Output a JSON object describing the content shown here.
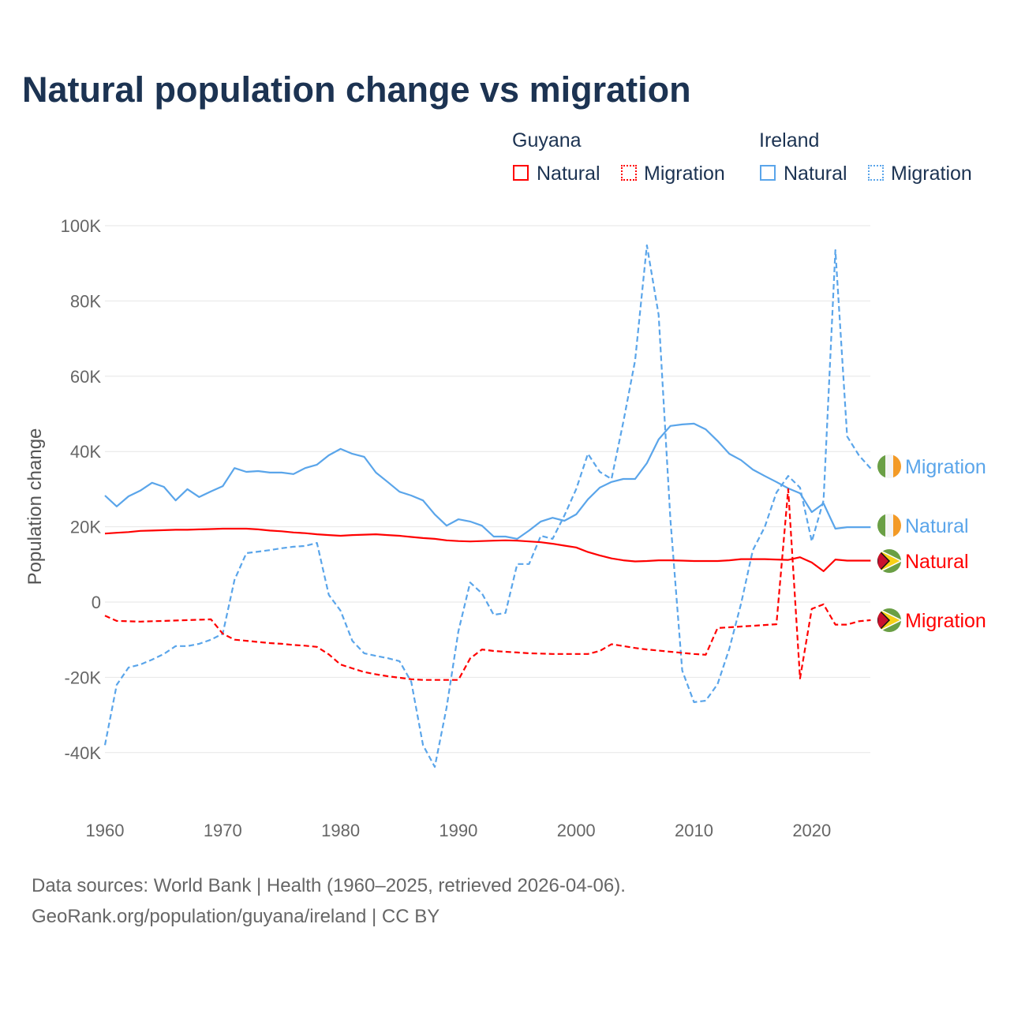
{
  "title": "Natural population change vs migration",
  "legend": {
    "groups": [
      {
        "name": "Guyana",
        "color": "#ff0000",
        "items": [
          "Natural",
          "Migration"
        ]
      },
      {
        "name": "Ireland",
        "color": "#5aa5ea",
        "items": [
          "Natural",
          "Migration"
        ]
      }
    ]
  },
  "footer": {
    "line1": "Data sources: World Bank | Health (1960–2025, retrieved 2026-04-06).",
    "line2": "GeoRank.org/population/guyana/ireland | CC BY"
  },
  "chart_data": {
    "type": "line",
    "title": "Natural population change vs migration",
    "xlabel": "",
    "ylabel": "Population change",
    "xlim": [
      1960,
      2025
    ],
    "ylim": [
      -50000,
      100000
    ],
    "x_ticks": [
      1960,
      1970,
      1980,
      1990,
      2000,
      2010,
      2020
    ],
    "y_ticks": [
      {
        "v": 100000,
        "label": "100K"
      },
      {
        "v": 80000,
        "label": "80K"
      },
      {
        "v": 60000,
        "label": "60K"
      },
      {
        "v": 40000,
        "label": "40K"
      },
      {
        "v": 20000,
        "label": "20K"
      },
      {
        "v": 0,
        "label": "0"
      },
      {
        "v": -20000,
        "label": "-20K"
      },
      {
        "v": -40000,
        "label": "-40K"
      }
    ],
    "grid": true,
    "legend_position": "top-right",
    "unit": "thousands",
    "series": [
      {
        "name": "Ireland Migration",
        "label": "Migration",
        "country": "Ireland",
        "color": "#5aa5ea",
        "dash": true,
        "values": [
          -38,
          -22,
          -17.4,
          -16.6,
          -15.3,
          -13.8,
          -11.7,
          -11.7,
          -11.1,
          -10,
          -8.4,
          5.9,
          13,
          13.4,
          13.8,
          14.3,
          14.7,
          14.9,
          15.7,
          1.9,
          -2.3,
          -10.3,
          -13.6,
          -14.3,
          -14.9,
          -15.7,
          -21.2,
          -38,
          -43.8,
          -28,
          -7.8,
          5.2,
          2.3,
          -3.4,
          -2.9,
          10.1,
          10.1,
          17.6,
          16.8,
          23,
          30,
          39.4,
          34.6,
          32.7,
          47.8,
          64.2,
          94.8,
          76.3,
          22,
          -18.2,
          -26.6,
          -26.2,
          -21.8,
          -12.4,
          -0.4,
          13.8,
          19.9,
          29.1,
          33.5,
          30.4,
          16.1,
          27,
          93.5,
          44,
          39,
          35.5
        ]
      },
      {
        "name": "Ireland Natural",
        "label": "Natural",
        "country": "Ireland",
        "color": "#5aa5ea",
        "dash": false,
        "values": [
          28.3,
          25.4,
          28.1,
          29.6,
          31.7,
          30.6,
          27,
          30,
          27.9,
          29.4,
          30.8,
          35.6,
          34.6,
          34.8,
          34.4,
          34.4,
          34,
          35.6,
          36.5,
          39,
          40.7,
          39.4,
          38.6,
          34.4,
          31.9,
          29.3,
          28.3,
          27,
          23.3,
          20.3,
          22,
          21.4,
          20.3,
          17.4,
          17.4,
          16.8,
          19,
          21.4,
          22.4,
          21.6,
          23.3,
          27.3,
          30.4,
          31.9,
          32.7,
          32.7,
          36.9,
          43.2,
          46.8,
          47.2,
          47.4,
          45.9,
          42.8,
          39.4,
          37.7,
          35.2,
          33.5,
          31.9,
          30.2,
          28.9,
          23.9,
          26.2,
          19.5,
          19.9,
          19.9,
          19.9
        ]
      },
      {
        "name": "Guyana Natural",
        "label": "Natural",
        "country": "Guyana",
        "color": "#ff0000",
        "dash": false,
        "values": [
          18.2,
          18.4,
          18.6,
          18.9,
          19,
          19.1,
          19.2,
          19.2,
          19.3,
          19.4,
          19.5,
          19.5,
          19.5,
          19.3,
          19,
          18.8,
          18.5,
          18.3,
          18,
          17.8,
          17.6,
          17.8,
          17.9,
          18,
          17.8,
          17.6,
          17.3,
          17,
          16.8,
          16.4,
          16.2,
          16.1,
          16.2,
          16.3,
          16.4,
          16.3,
          16.1,
          15.9,
          15.5,
          15,
          14.5,
          13.3,
          12.4,
          11.6,
          11.1,
          10.8,
          10.9,
          11.1,
          11.1,
          11,
          10.9,
          10.9,
          10.9,
          11.1,
          11.4,
          11.4,
          11.4,
          11.3,
          11.2,
          11.9,
          10.5,
          8.2,
          11.3,
          11,
          11,
          11
        ]
      },
      {
        "name": "Guyana Migration",
        "label": "Migration",
        "country": "Guyana",
        "color": "#ff0000",
        "dash": true,
        "values": [
          -3.6,
          -5,
          -5.1,
          -5.2,
          -5.1,
          -5,
          -4.9,
          -4.8,
          -4.7,
          -4.6,
          -8.4,
          -10,
          -10.3,
          -10.6,
          -10.9,
          -11.1,
          -11.4,
          -11.6,
          -11.9,
          -13.9,
          -16.6,
          -17.6,
          -18.6,
          -19.2,
          -19.7,
          -20.1,
          -20.5,
          -20.7,
          -20.7,
          -20.7,
          -20.7,
          -15,
          -12.6,
          -13,
          -13.2,
          -13.4,
          -13.6,
          -13.7,
          -13.8,
          -13.8,
          -13.8,
          -13.8,
          -13,
          -11.2,
          -11.7,
          -12.2,
          -12.6,
          -12.9,
          -13.2,
          -13.5,
          -13.8,
          -14,
          -6.9,
          -6.7,
          -6.5,
          -6.3,
          -6.1,
          -5.9,
          30,
          -20.3,
          -1.8,
          -0.6,
          -6,
          -6,
          -5.1,
          -4.8
        ]
      }
    ]
  }
}
